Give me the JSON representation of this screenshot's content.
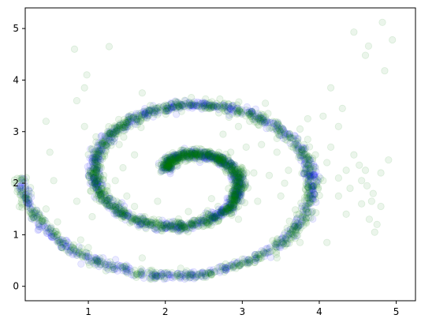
{
  "chart_data": {
    "type": "scatter",
    "title": "",
    "xlabel": "",
    "ylabel": "",
    "xlim": [
      0.18,
      5.25
    ],
    "ylim": [
      -0.28,
      5.4
    ],
    "xticks": [
      1,
      2,
      3,
      4,
      5
    ],
    "yticks": [
      0,
      1,
      2,
      3,
      4,
      5
    ],
    "grid": false,
    "legend": "none",
    "series": [
      {
        "color": "#0000ff",
        "alpha": 0.08,
        "marker": "circle",
        "description_points": "spiral",
        "spiral": {
          "center": [
            2.25,
            2.1
          ],
          "r_start": 0.3,
          "r_growth_per_radian": 0.1527,
          "theta_start_rad": 0.6,
          "theta_end_rad": 12.57,
          "y_scale": 1.0,
          "noise_sd": 0.04,
          "count": 1500
        }
      },
      {
        "color": "#008000",
        "alpha": 0.08,
        "marker": "circle",
        "description_points": "spiral_plus_scatter",
        "spiral": {
          "center": [
            2.25,
            2.1
          ],
          "r_start": 0.3,
          "r_growth_per_radian": 0.1527,
          "theta_start_rad": 0.6,
          "theta_end_rad": 12.57,
          "y_scale": 1.0,
          "noise_sd": 0.05,
          "count": 1700
        },
        "scatter_points": [
          [
            0.82,
            4.6
          ],
          [
            1.27,
            4.65
          ],
          [
            4.45,
            4.93
          ],
          [
            4.6,
            4.48
          ],
          [
            4.64,
            4.66
          ],
          [
            4.82,
            5.12
          ],
          [
            4.95,
            4.78
          ],
          [
            4.85,
            4.18
          ],
          [
            4.15,
            3.85
          ],
          [
            4.05,
            3.3
          ],
          [
            4.25,
            3.1
          ],
          [
            4.3,
            3.45
          ],
          [
            3.85,
            2.85
          ],
          [
            3.95,
            2.55
          ],
          [
            4.1,
            2.4
          ],
          [
            4.35,
            2.25
          ],
          [
            4.55,
            2.05
          ],
          [
            4.7,
            1.8
          ],
          [
            4.55,
            1.6
          ],
          [
            4.4,
            1.9
          ],
          [
            4.25,
            2.1
          ],
          [
            4.05,
            2.05
          ],
          [
            3.9,
            1.95
          ],
          [
            3.45,
            2.6
          ],
          [
            3.25,
            2.75
          ],
          [
            3.05,
            2.7
          ],
          [
            2.85,
            2.6
          ],
          [
            2.65,
            2.55
          ],
          [
            2.45,
            2.45
          ],
          [
            3.15,
            2.2
          ],
          [
            3.35,
            2.15
          ],
          [
            3.5,
            1.75
          ],
          [
            3.2,
            1.65
          ],
          [
            2.95,
            1.55
          ],
          [
            1.6,
            2.55
          ],
          [
            1.45,
            2.3
          ],
          [
            1.35,
            2.05
          ],
          [
            1.2,
            2.15
          ],
          [
            1.05,
            2.65
          ],
          [
            1.1,
            2.9
          ],
          [
            1.25,
            3.0
          ],
          [
            1.4,
            2.75
          ],
          [
            1.55,
            3.1
          ],
          [
            0.95,
            3.1
          ],
          [
            0.85,
            3.6
          ],
          [
            0.95,
            3.85
          ],
          [
            0.98,
            4.1
          ],
          [
            1.12,
            2.3
          ],
          [
            1.25,
            1.85
          ],
          [
            1.5,
            1.75
          ],
          [
            1.6,
            1.55
          ],
          [
            1.85,
            1.3
          ],
          [
            2.05,
            1.25
          ],
          [
            2.35,
            1.2
          ],
          [
            2.65,
            1.25
          ],
          [
            2.95,
            1.3
          ],
          [
            1.3,
            1.55
          ],
          [
            1.05,
            1.35
          ],
          [
            0.85,
            1.65
          ],
          [
            0.9,
            0.9
          ],
          [
            1.0,
            0.75
          ],
          [
            1.15,
            0.55
          ],
          [
            0.75,
            0.65
          ],
          [
            4.65,
            1.3
          ],
          [
            4.75,
            1.2
          ],
          [
            4.8,
            1.55
          ],
          [
            4.72,
            1.05
          ],
          [
            4.35,
            1.4
          ],
          [
            4.9,
            2.45
          ],
          [
            4.8,
            2.2
          ],
          [
            4.6,
            2.25
          ],
          [
            2.75,
            2.95
          ],
          [
            2.95,
            3.1
          ],
          [
            3.3,
            3.55
          ],
          [
            2.35,
            3.55
          ],
          [
            1.9,
            3.45
          ],
          [
            1.7,
            3.75
          ],
          [
            2.6,
            1.7
          ],
          [
            2.3,
            1.45
          ],
          [
            1.9,
            1.65
          ],
          [
            3.75,
            3.05
          ],
          [
            3.85,
            3.25
          ],
          [
            3.6,
            2.25
          ],
          [
            3.55,
            2.0
          ],
          [
            0.55,
            2.05
          ],
          [
            0.45,
            1.5
          ],
          [
            0.6,
            1.25
          ],
          [
            0.5,
            2.6
          ],
          [
            1.7,
            0.55
          ],
          [
            2.2,
            0.35
          ],
          [
            3.0,
            0.45
          ],
          [
            3.45,
            0.55
          ],
          [
            3.75,
            0.85
          ],
          [
            4.1,
            0.85
          ],
          [
            0.45,
            3.2
          ],
          [
            4.45,
            2.55
          ],
          [
            4.52,
            2.35
          ],
          [
            4.62,
            1.95
          ],
          [
            4.68,
            1.65
          ],
          [
            4.25,
            1.75
          ],
          [
            4.15,
            2.7
          ],
          [
            3.95,
            2.3
          ]
        ]
      }
    ]
  }
}
